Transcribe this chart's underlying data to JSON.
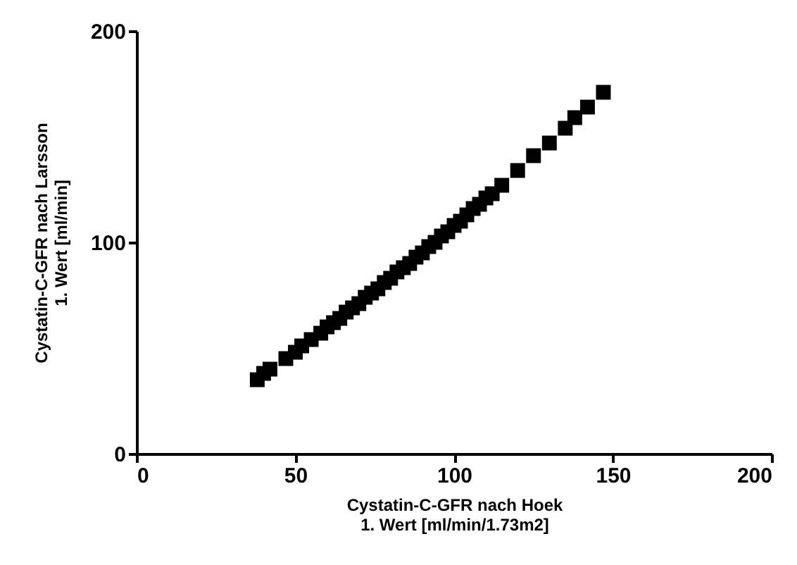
{
  "chart_data": {
    "type": "scatter",
    "xlabel": "Cystatin-C-GFR nach Hoek\n1. Wert [ml/min/1.73m2]",
    "ylabel": "Cystatin-C-GFR nach Larsson\n1. Wert [ml/min]",
    "x": [
      38,
      40,
      42,
      47,
      50,
      52,
      55,
      58,
      60,
      62,
      64,
      66,
      68,
      70,
      72,
      74,
      76,
      78,
      80,
      82,
      84,
      86,
      88,
      90,
      92,
      94,
      96,
      98,
      100,
      102,
      104,
      106,
      108,
      110,
      112,
      115,
      120,
      125,
      130,
      135,
      138,
      142,
      147
    ],
    "series": [
      {
        "color": "#000000",
        "values": [
          35,
          38,
          40,
          45,
          48,
          51,
          54,
          57,
          60,
          62,
          64,
          67,
          69,
          71,
          74,
          76,
          78,
          81,
          83,
          86,
          88,
          90,
          93,
          95,
          98,
          100,
          103,
          105,
          108,
          110,
          113,
          116,
          118,
          121,
          123,
          127,
          134,
          141,
          147,
          154,
          159,
          164,
          171
        ]
      }
    ],
    "marker": "square",
    "xlim": [
      0,
      200
    ],
    "ylim": [
      0,
      200
    ],
    "xticks": [
      0,
      50,
      100,
      150,
      200
    ],
    "yticks": [
      0,
      100,
      200
    ],
    "grid": false,
    "legend": false
  }
}
